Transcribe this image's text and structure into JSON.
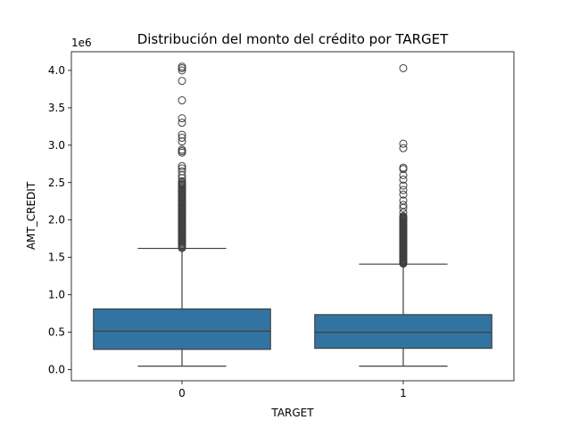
{
  "chart_data": {
    "type": "box",
    "title": "Distribución del monto del crédito por TARGET",
    "xlabel": "TARGET",
    "ylabel": "AMT_CREDIT",
    "y_offset_label": "1e6",
    "y_scale_factor": 1000000,
    "ylim": [
      -150000,
      4250000
    ],
    "yticks": [
      0,
      500000,
      1000000,
      1500000,
      2000000,
      2500000,
      3000000,
      3500000,
      4000000
    ],
    "ytick_labels": [
      "0.0",
      "0.5",
      "1.0",
      "1.5",
      "2.0",
      "2.5",
      "3.0",
      "3.5",
      "4.0"
    ],
    "categories": [
      "0",
      "1"
    ],
    "box_color": "#3274a1",
    "line_color": "#3f3f3f",
    "grid": false,
    "legend": "none",
    "boxes": [
      {
        "category": "0",
        "whisker_low": 45000,
        "q1": 270000,
        "median": 513000,
        "q3": 810000,
        "whisker_high": 1620000,
        "outliers_dense_range": [
          1625000,
          2500000
        ],
        "outliers": [
          2520000,
          2560000,
          2600000,
          2650000,
          2690000,
          2720000,
          2900000,
          2920000,
          2940000,
          3050000,
          3100000,
          3140000,
          3300000,
          3360000,
          3600000,
          3860000,
          4000000,
          4030000,
          4050000
        ]
      },
      {
        "category": "1",
        "whisker_low": 45000,
        "q1": 284000,
        "median": 497000,
        "q3": 734000,
        "whisker_high": 1410000,
        "outliers_dense_range": [
          1415000,
          2050000
        ],
        "outliers": [
          2100000,
          2160000,
          2200000,
          2260000,
          2340000,
          2400000,
          2460000,
          2540000,
          2600000,
          2680000,
          2700000,
          2960000,
          3020000,
          4030000
        ]
      }
    ]
  }
}
